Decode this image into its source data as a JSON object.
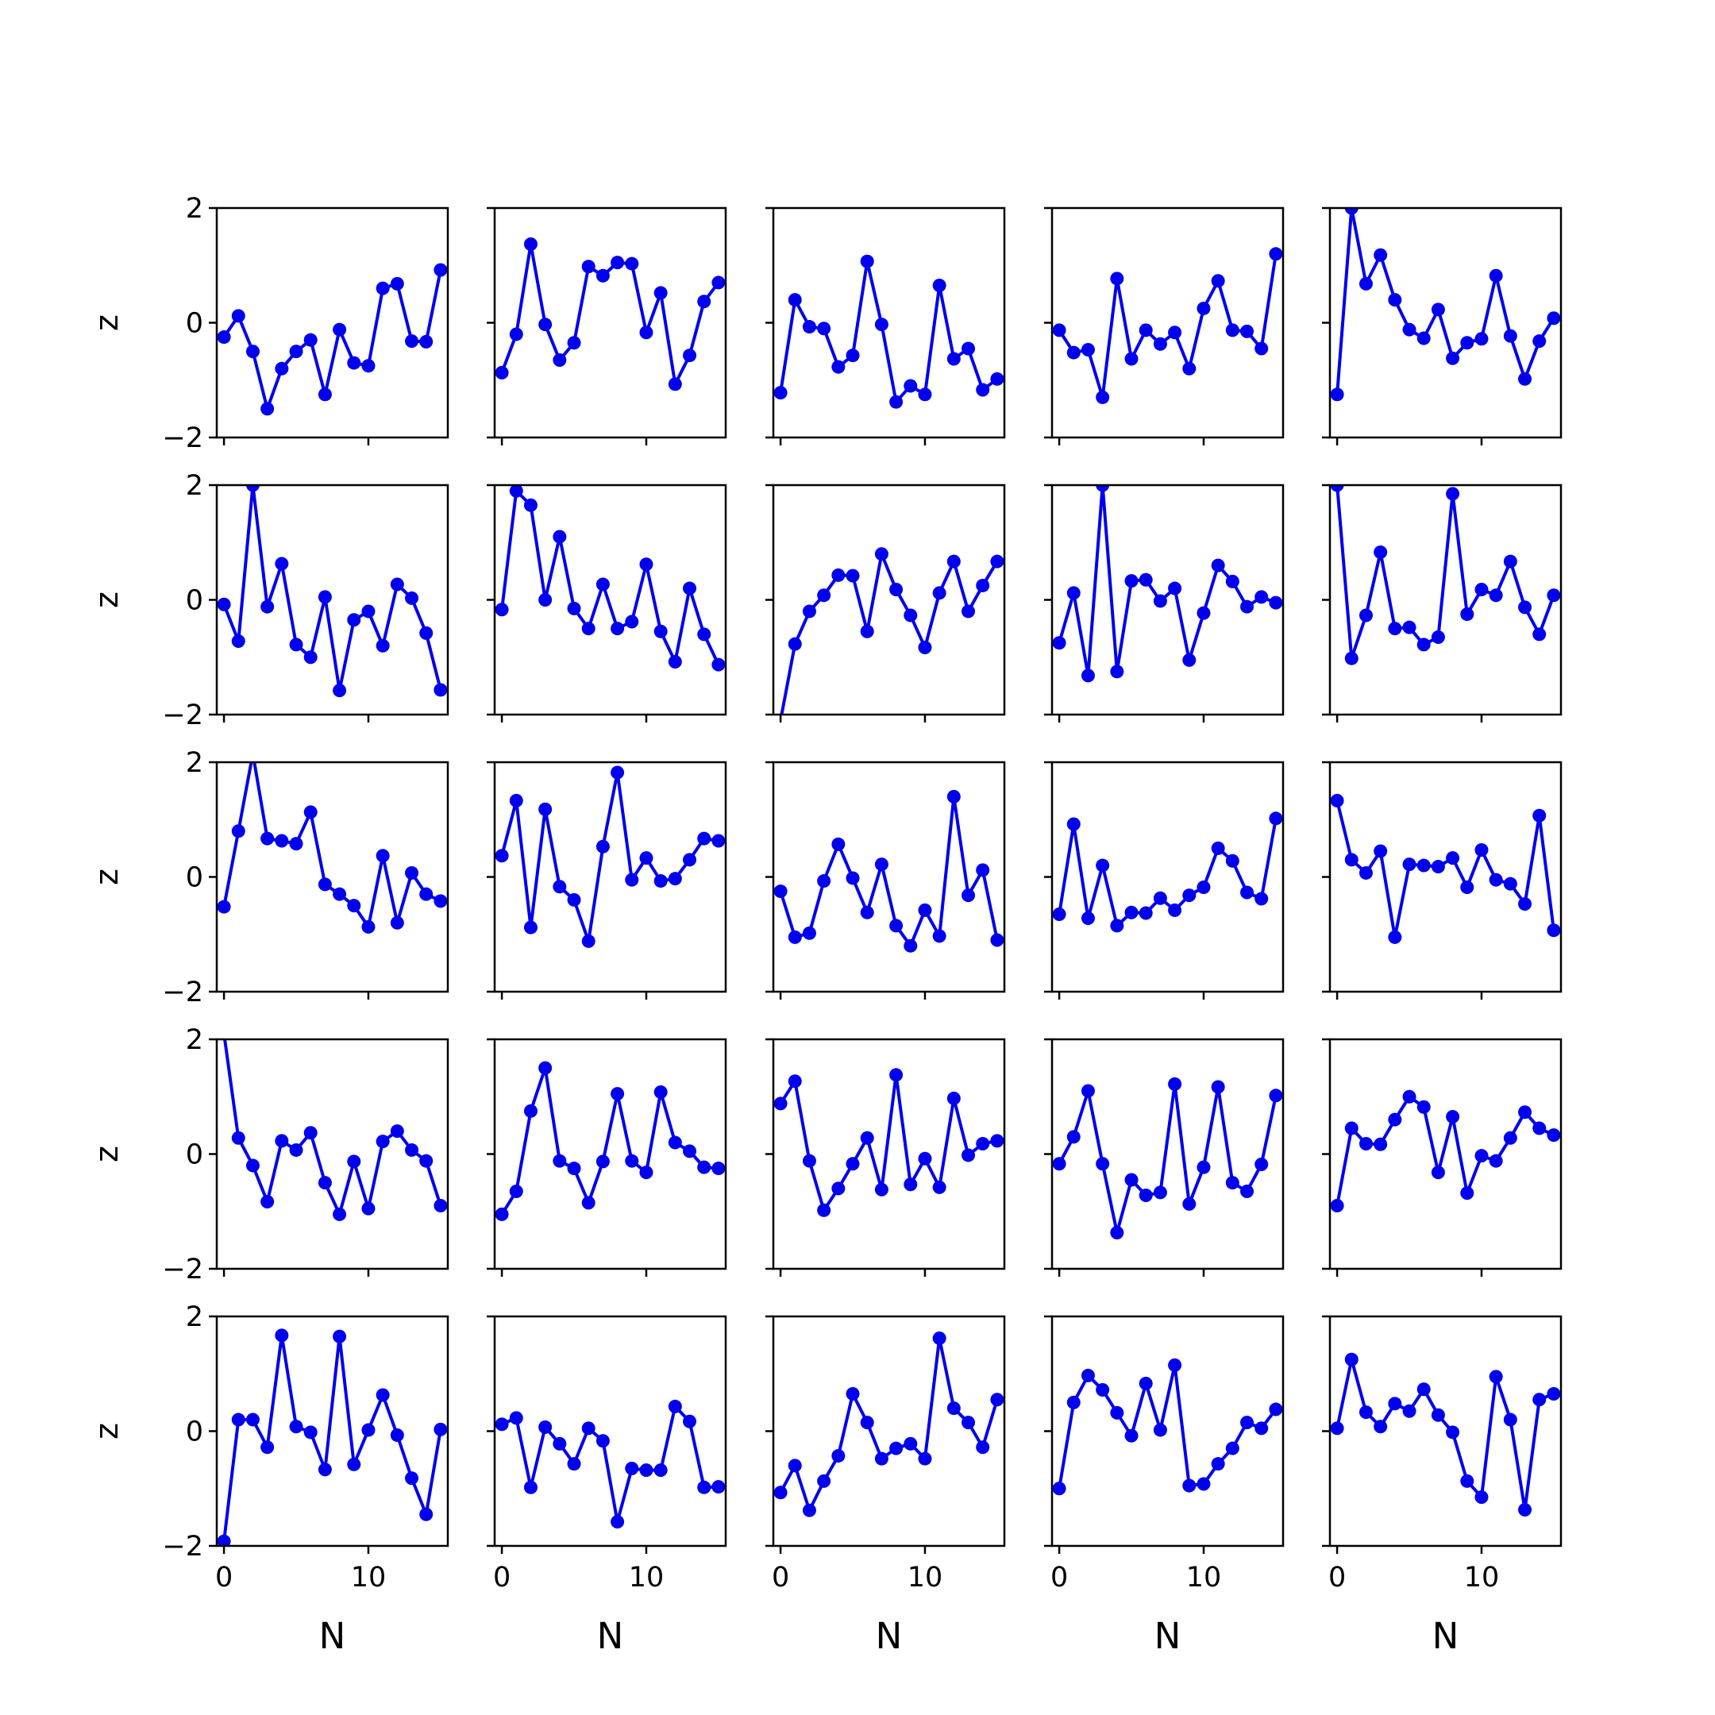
{
  "colors": {
    "line": "#0000ee",
    "axes": "#000000",
    "background": "#ffffff"
  },
  "chart_data": {
    "type": "line",
    "layout": "5x5 grid of small multiples, shared axes",
    "x": [
      0,
      1,
      2,
      3,
      4,
      5,
      6,
      7,
      8,
      9,
      10,
      11,
      12,
      13,
      14,
      15
    ],
    "xlabel": "N",
    "ylabel": "z",
    "xticks": [
      "0",
      "10"
    ],
    "yticks": [
      "−2",
      "0",
      "2"
    ],
    "xlim": [
      -0.5,
      15.5
    ],
    "ylim": [
      -2,
      2
    ],
    "marker": "circle",
    "grid": false,
    "legend": false,
    "panels": [
      {
        "row": 0,
        "col": 0,
        "values": [
          -0.25,
          0.12,
          -0.5,
          -1.5,
          -0.8,
          -0.5,
          -0.3,
          -1.25,
          -0.12,
          -0.7,
          -0.75,
          0.6,
          0.68,
          -0.32,
          -0.33,
          0.92
        ]
      },
      {
        "row": 0,
        "col": 1,
        "values": [
          -0.87,
          -0.2,
          1.37,
          -0.03,
          -0.65,
          -0.35,
          0.98,
          0.82,
          1.05,
          1.03,
          -0.17,
          0.52,
          -1.07,
          -0.57,
          0.37,
          0.7
        ]
      },
      {
        "row": 0,
        "col": 2,
        "values": [
          -1.22,
          0.4,
          -0.07,
          -0.1,
          -0.77,
          -0.57,
          1.07,
          -0.03,
          -1.38,
          -1.1,
          -1.25,
          0.65,
          -0.63,
          -0.45,
          -1.17,
          -0.98
        ]
      },
      {
        "row": 0,
        "col": 3,
        "values": [
          -0.13,
          -0.52,
          -0.47,
          -1.3,
          0.77,
          -0.63,
          -0.13,
          -0.37,
          -0.17,
          -0.8,
          0.25,
          0.73,
          -0.13,
          -0.15,
          -0.45,
          1.2
        ]
      },
      {
        "row": 0,
        "col": 4,
        "values": [
          -1.25,
          2.0,
          0.68,
          1.18,
          0.4,
          -0.12,
          -0.27,
          0.23,
          -0.62,
          -0.35,
          -0.28,
          0.82,
          -0.23,
          -0.98,
          -0.32,
          0.08
        ]
      },
      {
        "row": 1,
        "col": 0,
        "values": [
          -0.08,
          -0.72,
          2.0,
          -0.12,
          0.63,
          -0.78,
          -1.0,
          0.05,
          -1.58,
          -0.35,
          -0.2,
          -0.8,
          0.27,
          0.03,
          -0.58,
          -1.57
        ]
      },
      {
        "row": 1,
        "col": 1,
        "values": [
          -0.17,
          1.9,
          1.65,
          0.0,
          1.1,
          -0.15,
          -0.5,
          0.27,
          -0.5,
          -0.38,
          0.62,
          -0.55,
          -1.08,
          0.2,
          -0.6,
          -1.13
        ]
      },
      {
        "row": 1,
        "col": 2,
        "values": [
          -2.1,
          -0.77,
          -0.2,
          0.08,
          0.43,
          0.42,
          -0.55,
          0.8,
          0.18,
          -0.27,
          -0.83,
          0.12,
          0.67,
          -0.2,
          0.25,
          0.67
        ]
      },
      {
        "row": 1,
        "col": 3,
        "values": [
          -0.75,
          0.12,
          -1.32,
          2.0,
          -1.25,
          0.33,
          0.35,
          -0.02,
          0.2,
          -1.05,
          -0.23,
          0.6,
          0.32,
          -0.12,
          0.05,
          -0.05
        ]
      },
      {
        "row": 1,
        "col": 4,
        "values": [
          2.0,
          -1.02,
          -0.27,
          0.83,
          -0.5,
          -0.48,
          -0.78,
          -0.65,
          1.85,
          -0.25,
          0.18,
          0.08,
          0.67,
          -0.13,
          -0.6,
          0.08
        ]
      },
      {
        "row": 2,
        "col": 0,
        "values": [
          -0.52,
          0.8,
          2.15,
          0.67,
          0.63,
          0.58,
          1.13,
          -0.13,
          -0.3,
          -0.5,
          -0.87,
          0.37,
          -0.8,
          0.07,
          -0.3,
          -0.42
        ]
      },
      {
        "row": 2,
        "col": 1,
        "values": [
          0.37,
          1.33,
          -0.88,
          1.18,
          -0.17,
          -0.4,
          -1.12,
          0.53,
          1.82,
          -0.05,
          0.33,
          -0.07,
          -0.03,
          0.3,
          0.67,
          0.63
        ]
      },
      {
        "row": 2,
        "col": 2,
        "values": [
          -0.25,
          -1.05,
          -0.98,
          -0.07,
          0.57,
          -0.02,
          -0.62,
          0.22,
          -0.85,
          -1.2,
          -0.58,
          -1.03,
          1.4,
          -0.32,
          0.12,
          -1.1
        ]
      },
      {
        "row": 2,
        "col": 3,
        "values": [
          -0.65,
          0.92,
          -0.72,
          0.2,
          -0.85,
          -0.62,
          -0.63,
          -0.37,
          -0.58,
          -0.32,
          -0.18,
          0.5,
          0.28,
          -0.27,
          -0.38,
          1.02
        ]
      },
      {
        "row": 2,
        "col": 4,
        "values": [
          1.33,
          0.3,
          0.07,
          0.45,
          -1.05,
          0.22,
          0.2,
          0.18,
          0.33,
          -0.18,
          0.47,
          -0.05,
          -0.12,
          -0.47,
          1.07,
          -0.93
        ]
      },
      {
        "row": 3,
        "col": 0,
        "values": [
          2.1,
          0.28,
          -0.2,
          -0.83,
          0.23,
          0.07,
          0.37,
          -0.5,
          -1.05,
          -0.13,
          -0.95,
          0.22,
          0.4,
          0.07,
          -0.12,
          -0.9
        ]
      },
      {
        "row": 3,
        "col": 1,
        "values": [
          -1.05,
          -0.65,
          0.75,
          1.5,
          -0.12,
          -0.25,
          -0.85,
          -0.13,
          1.05,
          -0.12,
          -0.32,
          1.08,
          0.2,
          0.05,
          -0.23,
          -0.25
        ]
      },
      {
        "row": 3,
        "col": 2,
        "values": [
          0.88,
          1.27,
          -0.12,
          -0.98,
          -0.6,
          -0.17,
          0.28,
          -0.62,
          1.38,
          -0.53,
          -0.08,
          -0.58,
          0.97,
          -0.02,
          0.18,
          0.23
        ]
      },
      {
        "row": 3,
        "col": 3,
        "values": [
          -0.17,
          0.3,
          1.1,
          -0.17,
          -1.37,
          -0.45,
          -0.72,
          -0.67,
          1.22,
          -0.87,
          -0.23,
          1.17,
          -0.5,
          -0.65,
          -0.18,
          1.02
        ]
      },
      {
        "row": 3,
        "col": 4,
        "values": [
          -0.9,
          0.45,
          0.18,
          0.17,
          0.6,
          1.0,
          0.82,
          -0.32,
          0.65,
          -0.68,
          -0.03,
          -0.12,
          0.28,
          0.73,
          0.45,
          0.33
        ]
      },
      {
        "row": 4,
        "col": 0,
        "values": [
          -1.92,
          0.2,
          0.2,
          -0.28,
          1.67,
          0.08,
          -0.02,
          -0.67,
          1.65,
          -0.58,
          0.02,
          0.63,
          -0.07,
          -0.82,
          -1.45,
          0.03
        ]
      },
      {
        "row": 4,
        "col": 1,
        "values": [
          0.12,
          0.23,
          -0.98,
          0.07,
          -0.22,
          -0.57,
          0.05,
          -0.17,
          -1.58,
          -0.65,
          -0.68,
          -0.68,
          0.43,
          0.17,
          -0.98,
          -0.97
        ]
      },
      {
        "row": 4,
        "col": 2,
        "values": [
          -1.07,
          -0.6,
          -1.38,
          -0.87,
          -0.43,
          0.65,
          0.15,
          -0.48,
          -0.3,
          -0.22,
          -0.48,
          1.62,
          0.4,
          0.15,
          -0.28,
          0.55
        ]
      },
      {
        "row": 4,
        "col": 3,
        "values": [
          -1.0,
          0.5,
          0.97,
          0.72,
          0.32,
          -0.08,
          0.83,
          0.02,
          1.15,
          -0.95,
          -0.92,
          -0.57,
          -0.3,
          0.15,
          0.05,
          0.38
        ]
      },
      {
        "row": 4,
        "col": 4,
        "values": [
          0.05,
          1.25,
          0.33,
          0.08,
          0.48,
          0.35,
          0.73,
          0.28,
          -0.02,
          -0.87,
          -1.15,
          0.95,
          0.2,
          -1.37,
          0.55,
          0.65
        ]
      }
    ]
  }
}
